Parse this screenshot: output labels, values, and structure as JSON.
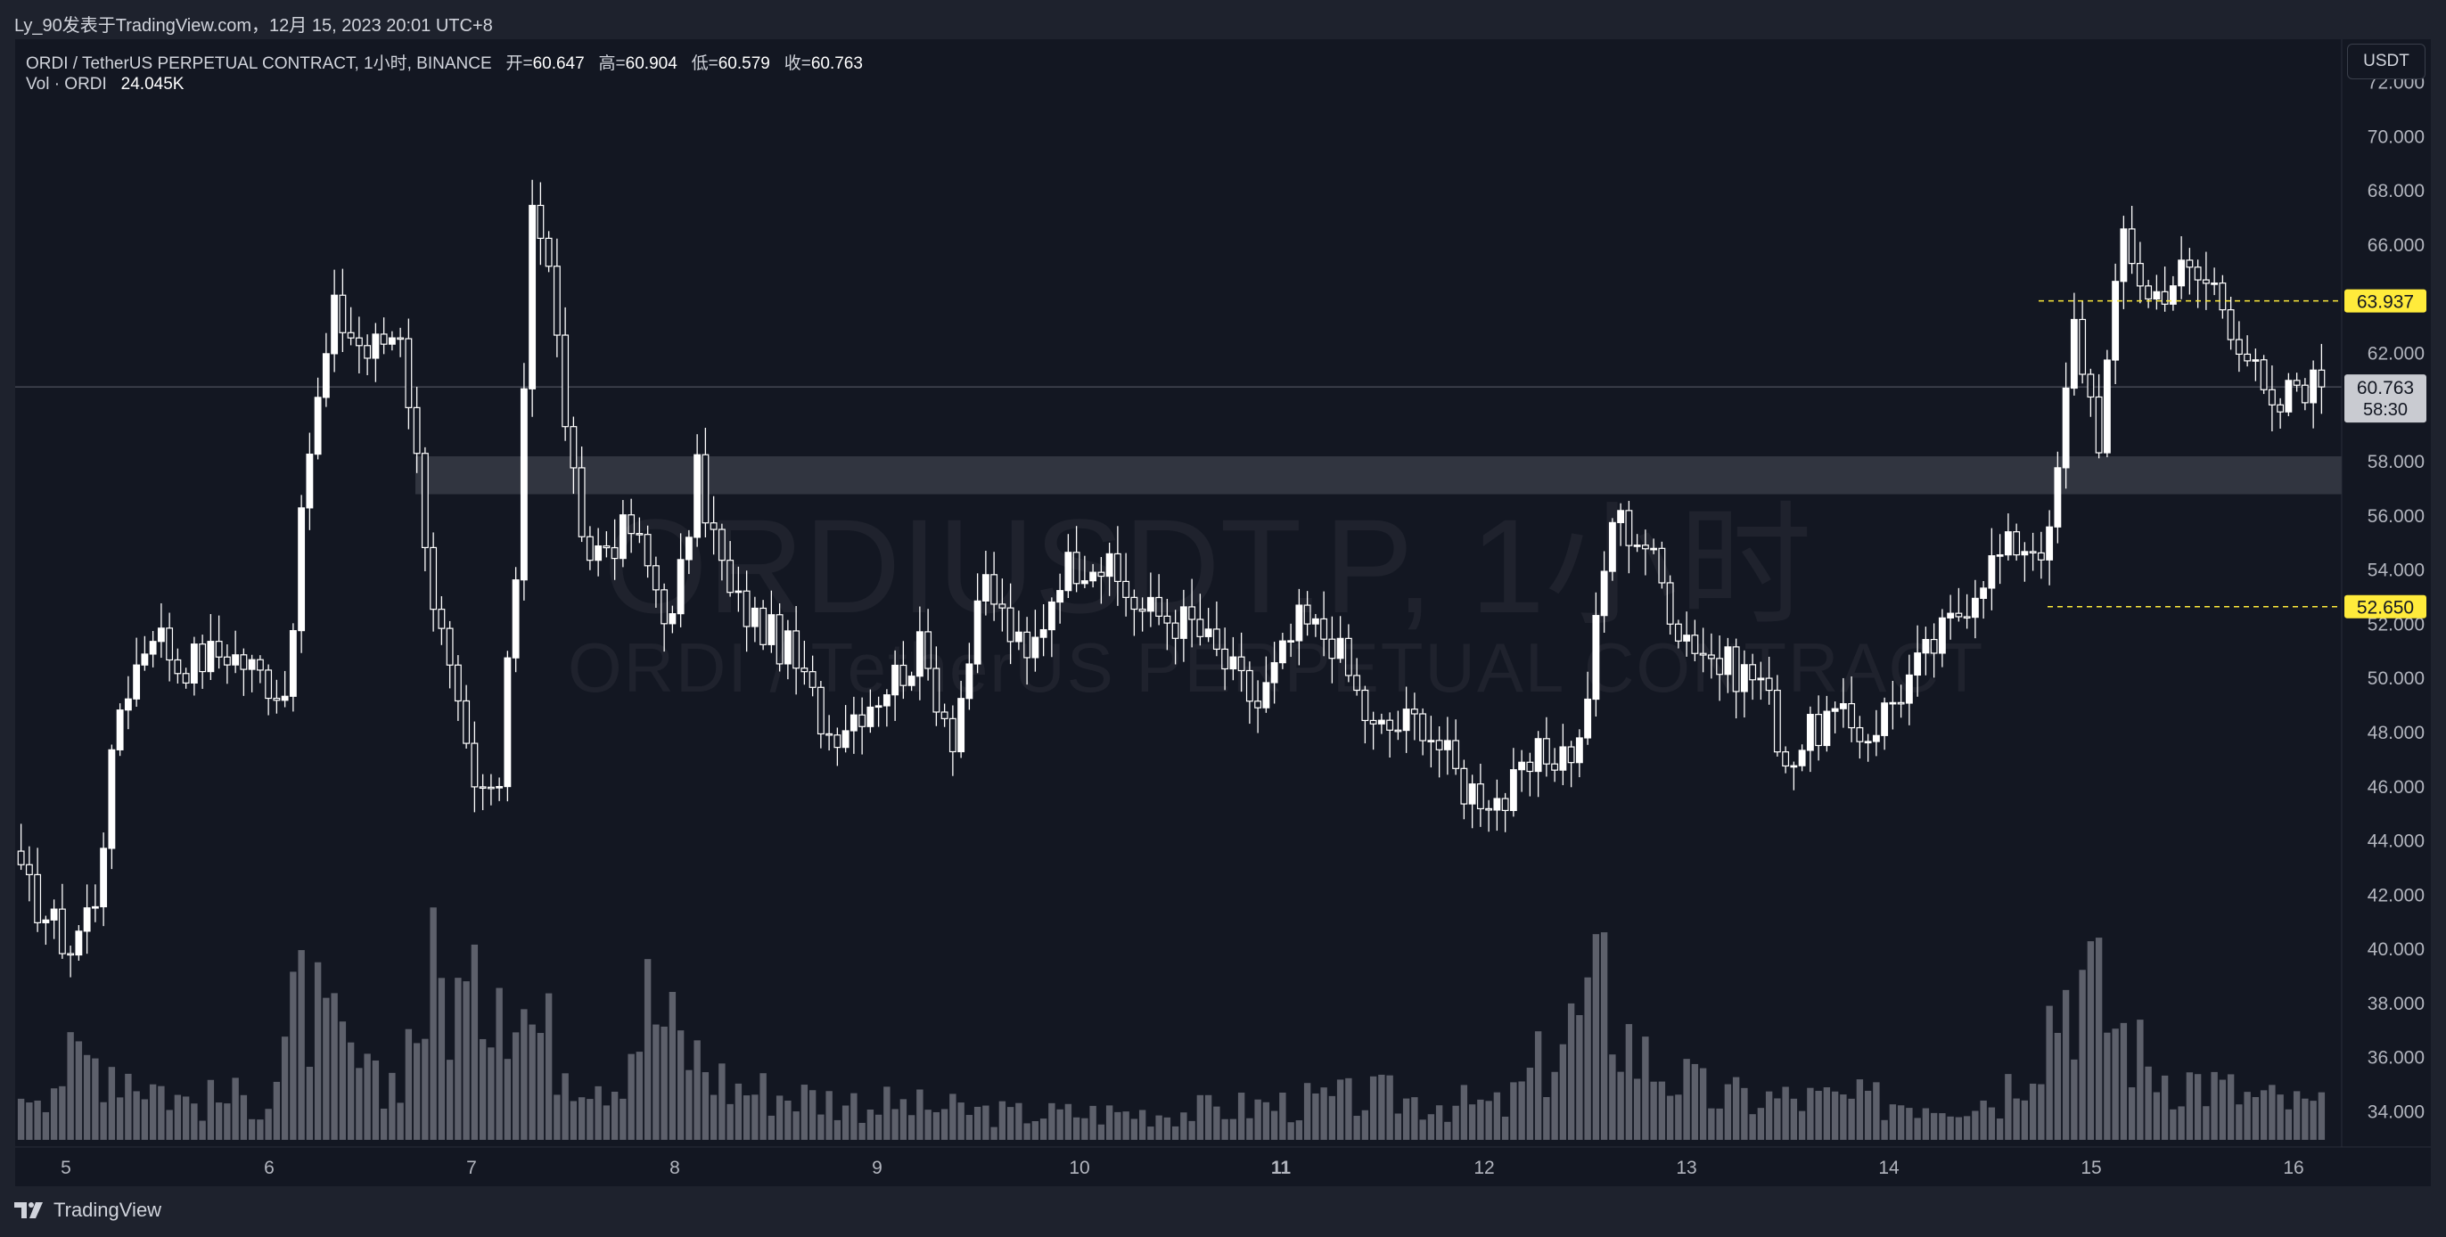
{
  "header": {
    "text": "Ly_90发表于TradingView.com，12月 15, 2023 20:01 UTC+8"
  },
  "legend": {
    "symbol": "ORDI / TetherUS PERPETUAL CONTRACT, 1小时, BINANCE",
    "open_label": "开=",
    "open": "60.647",
    "high_label": "高=",
    "high": "60.904",
    "low_label": "低=",
    "low": "60.579",
    "close_label": "收=",
    "close": "60.763",
    "vol_label": "Vol · ORDI",
    "vol": "24.045K"
  },
  "currency_button": "USDT",
  "watermark": {
    "line1": "ORDIUSDT.P, 1小时",
    "line2": "ORDI / TetherUS PERPETUAL CONTRACT"
  },
  "brand": {
    "name": "TradingView"
  },
  "colors": {
    "background": "#131722",
    "candle": "#ffffff",
    "volume": "#5d606b",
    "zone": "#4a4e59",
    "marker": "#ffeb3b",
    "price_label": "#c9cbd1"
  },
  "chart_data": {
    "type": "candlestick",
    "title": "ORDI / TetherUS PERPETUAL CONTRACT, 1小时, BINANCE",
    "x_ticks": [
      "5",
      "6",
      "7",
      "8",
      "9",
      "10",
      "11",
      "12",
      "13",
      "14",
      "15",
      "16"
    ],
    "y_ticks": [
      "72.000",
      "70.000",
      "68.000",
      "66.000",
      "64.000",
      "62.000",
      "60.000",
      "58.000",
      "56.000",
      "54.000",
      "52.000",
      "50.000",
      "48.000",
      "46.000",
      "44.000",
      "42.000",
      "40.000",
      "38.000",
      "36.000",
      "34.000"
    ],
    "ylim": [
      32.7,
      73.6
    ],
    "zone": {
      "from": 56.8,
      "to": 58.2
    },
    "levels": [
      {
        "label": "63.937",
        "value": 63.937
      },
      {
        "label": "52.650",
        "value": 52.65
      }
    ],
    "last_price": {
      "label": "60.763",
      "value": 60.763,
      "countdown": "58:30"
    },
    "keypoints": [
      {
        "i": 0,
        "p": 42.5
      },
      {
        "i": 6,
        "p": 40.0
      },
      {
        "i": 9,
        "p": 42.0
      },
      {
        "i": 12,
        "p": 49.0
      },
      {
        "i": 16,
        "p": 52.0
      },
      {
        "i": 19,
        "p": 50.5
      },
      {
        "i": 25,
        "p": 51.0
      },
      {
        "i": 32,
        "p": 49.5
      },
      {
        "i": 35,
        "p": 58.5
      },
      {
        "i": 38,
        "p": 63.5
      },
      {
        "i": 42,
        "p": 62.0
      },
      {
        "i": 46,
        "p": 63.0
      },
      {
        "i": 50,
        "p": 53.0
      },
      {
        "i": 55,
        "p": 45.5
      },
      {
        "i": 58,
        "p": 46.0
      },
      {
        "i": 60,
        "p": 54.0
      },
      {
        "i": 62,
        "p": 68.0
      },
      {
        "i": 64,
        "p": 65.0
      },
      {
        "i": 68,
        "p": 54.5
      },
      {
        "i": 74,
        "p": 55.5
      },
      {
        "i": 79,
        "p": 52.0
      },
      {
        "i": 82,
        "p": 57.5
      },
      {
        "i": 86,
        "p": 53.0
      },
      {
        "i": 93,
        "p": 51.0
      },
      {
        "i": 98,
        "p": 48.0
      },
      {
        "i": 104,
        "p": 49.5
      },
      {
        "i": 109,
        "p": 51.0
      },
      {
        "i": 113,
        "p": 48.0
      },
      {
        "i": 117,
        "p": 53.5
      },
      {
        "i": 122,
        "p": 50.5
      },
      {
        "i": 126,
        "p": 54.0
      },
      {
        "i": 130,
        "p": 54.5
      },
      {
        "i": 136,
        "p": 52.5
      },
      {
        "i": 142,
        "p": 52.0
      },
      {
        "i": 146,
        "p": 50.5
      },
      {
        "i": 150,
        "p": 49.0
      },
      {
        "i": 155,
        "p": 52.0
      },
      {
        "i": 159,
        "p": 51.5
      },
      {
        "i": 164,
        "p": 48.0
      },
      {
        "i": 170,
        "p": 48.5
      },
      {
        "i": 175,
        "p": 46.0
      },
      {
        "i": 180,
        "p": 45.5
      },
      {
        "i": 184,
        "p": 47.0
      },
      {
        "i": 189,
        "p": 47.5
      },
      {
        "i": 193,
        "p": 56.0
      },
      {
        "i": 197,
        "p": 55.0
      },
      {
        "i": 201,
        "p": 52.0
      },
      {
        "i": 206,
        "p": 50.5
      },
      {
        "i": 211,
        "p": 50.0
      },
      {
        "i": 214,
        "p": 47.0
      },
      {
        "i": 219,
        "p": 48.5
      },
      {
        "i": 224,
        "p": 48.0
      },
      {
        "i": 229,
        "p": 50.0
      },
      {
        "i": 234,
        "p": 52.0
      },
      {
        "i": 238,
        "p": 54.0
      },
      {
        "i": 242,
        "p": 55.0
      },
      {
        "i": 246,
        "p": 55.0
      },
      {
        "i": 249,
        "p": 63.0
      },
      {
        "i": 252,
        "p": 59.0
      },
      {
        "i": 255,
        "p": 66.5
      },
      {
        "i": 258,
        "p": 64.0
      },
      {
        "i": 262,
        "p": 65.0
      },
      {
        "i": 266,
        "p": 64.5
      },
      {
        "i": 270,
        "p": 62.0
      },
      {
        "i": 273,
        "p": 59.5
      },
      {
        "i": 276,
        "p": 61.0
      },
      {
        "i": 279,
        "p": 60.763
      }
    ],
    "volume_profile": [
      {
        "i": 0,
        "v": 0.25
      },
      {
        "i": 10,
        "v": 0.4
      },
      {
        "i": 20,
        "v": 0.18
      },
      {
        "i": 30,
        "v": 0.2
      },
      {
        "i": 34,
        "v": 0.65
      },
      {
        "i": 37,
        "v": 0.5
      },
      {
        "i": 44,
        "v": 0.2
      },
      {
        "i": 50,
        "v": 0.75
      },
      {
        "i": 55,
        "v": 0.6
      },
      {
        "i": 58,
        "v": 0.95
      },
      {
        "i": 62,
        "v": 0.55
      },
      {
        "i": 66,
        "v": 0.4
      },
      {
        "i": 72,
        "v": 0.3
      },
      {
        "i": 76,
        "v": 0.65
      },
      {
        "i": 80,
        "v": 0.45
      },
      {
        "i": 86,
        "v": 0.25
      },
      {
        "i": 100,
        "v": 0.18
      },
      {
        "i": 120,
        "v": 0.12
      },
      {
        "i": 140,
        "v": 0.13
      },
      {
        "i": 165,
        "v": 0.2
      },
      {
        "i": 180,
        "v": 0.15
      },
      {
        "i": 192,
        "v": 0.7
      },
      {
        "i": 196,
        "v": 0.4
      },
      {
        "i": 205,
        "v": 0.2
      },
      {
        "i": 225,
        "v": 0.18
      },
      {
        "i": 240,
        "v": 0.2
      },
      {
        "i": 249,
        "v": 0.8
      },
      {
        "i": 253,
        "v": 0.6
      },
      {
        "i": 258,
        "v": 0.35
      },
      {
        "i": 270,
        "v": 0.2
      },
      {
        "i": 279,
        "v": 0.15
      }
    ],
    "bar_count": 280
  }
}
